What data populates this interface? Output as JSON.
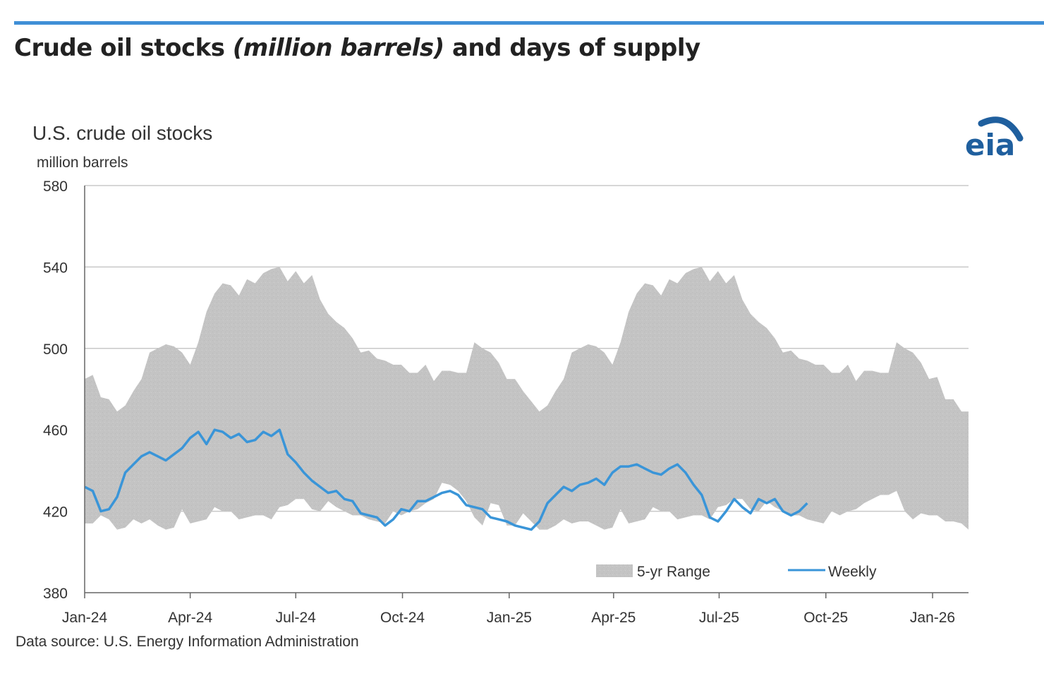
{
  "header": {
    "title_part1": "Crude oil stocks ",
    "title_part2": "(million barrels)",
    "title_part3": " and days of supply"
  },
  "colors": {
    "accent_rule": "#3f8fd6",
    "range_fill": "#c4c4c4",
    "weekly_line": "#3a95d8",
    "grid": "#c8c8c8",
    "logo": "#1f5f9e"
  },
  "logo": {
    "text": "eia"
  },
  "chart_data": {
    "type": "area",
    "title": "U.S. crude oil stocks",
    "ylabel": "million barrels",
    "ylim": [
      380,
      580
    ],
    "yticks": [
      380,
      420,
      460,
      500,
      540,
      580
    ],
    "xlim": [
      "2024-01-01",
      "2026-02-01"
    ],
    "xticks": [
      "Jan-24",
      "Apr-24",
      "Jul-24",
      "Oct-24",
      "Jan-25",
      "Apr-25",
      "Jul-25",
      "Oct-25",
      "Jan-26"
    ],
    "grid": true,
    "legend": "bottom-right",
    "legend_entries": [
      "5-yr Range",
      "Weekly"
    ],
    "source": "Data source: U.S. Energy Information Administration",
    "series": [
      {
        "name": "5-yr Range",
        "kind": "band",
        "x": [
          "2024-01-01",
          "2024-01-08",
          "2024-01-15",
          "2024-01-22",
          "2024-01-29",
          "2024-02-05",
          "2024-02-12",
          "2024-02-19",
          "2024-02-26",
          "2024-03-04",
          "2024-03-11",
          "2024-03-18",
          "2024-03-25",
          "2024-04-01",
          "2024-04-08",
          "2024-04-15",
          "2024-04-22",
          "2024-04-29",
          "2024-05-06",
          "2024-05-13",
          "2024-05-20",
          "2024-05-27",
          "2024-06-03",
          "2024-06-10",
          "2024-06-17",
          "2024-06-24",
          "2024-07-01",
          "2024-07-08",
          "2024-07-15",
          "2024-07-22",
          "2024-07-29",
          "2024-08-05",
          "2024-08-12",
          "2024-08-19",
          "2024-08-26",
          "2024-09-02",
          "2024-09-09",
          "2024-09-16",
          "2024-09-23",
          "2024-09-30",
          "2024-10-07",
          "2024-10-14",
          "2024-10-21",
          "2024-10-28",
          "2024-11-04",
          "2024-11-11",
          "2024-11-18",
          "2024-11-25",
          "2024-12-02",
          "2024-12-09",
          "2024-12-16",
          "2024-12-23",
          "2024-12-30",
          "2025-01-06",
          "2025-01-13",
          "2025-01-20",
          "2025-01-27",
          "2025-02-03",
          "2025-02-10",
          "2025-02-17",
          "2025-02-24",
          "2025-03-03",
          "2025-03-10",
          "2025-03-17",
          "2025-03-24",
          "2025-03-31",
          "2025-04-07",
          "2025-04-14",
          "2025-04-21",
          "2025-04-28",
          "2025-05-05",
          "2025-05-12",
          "2025-05-19",
          "2025-05-26",
          "2025-06-02",
          "2025-06-09",
          "2025-06-16",
          "2025-06-23",
          "2025-06-30",
          "2025-07-07",
          "2025-07-14",
          "2025-07-21",
          "2025-07-28",
          "2025-08-04",
          "2025-08-11",
          "2025-08-18",
          "2025-08-25",
          "2025-09-01",
          "2025-09-08",
          "2025-09-15",
          "2025-09-22",
          "2025-09-29",
          "2025-10-06",
          "2025-10-13",
          "2025-10-20",
          "2025-10-27",
          "2025-11-03",
          "2025-11-10",
          "2025-11-17",
          "2025-11-24",
          "2025-12-01",
          "2025-12-08",
          "2025-12-15",
          "2025-12-22",
          "2025-12-29",
          "2026-01-05",
          "2026-01-12",
          "2026-01-19",
          "2026-01-26",
          "2026-02-01"
        ],
        "upper": [
          485,
          487,
          476,
          475,
          469,
          472,
          479,
          485,
          498,
          500,
          502,
          501,
          498,
          492,
          503,
          518,
          527,
          532,
          531,
          526,
          534,
          532,
          537,
          539,
          540,
          533,
          538,
          532,
          536,
          524,
          517,
          513,
          510,
          505,
          498,
          499,
          495,
          494,
          492,
          492,
          488,
          488,
          492,
          484,
          489,
          489,
          488,
          488,
          503,
          500,
          498,
          493,
          485,
          485,
          479,
          474,
          469,
          472,
          479,
          485,
          498,
          500,
          502,
          501,
          498,
          492,
          503,
          518,
          527,
          532,
          531,
          526,
          534,
          532,
          537,
          539,
          540,
          533,
          538,
          532,
          536,
          524,
          517,
          513,
          510,
          505,
          498,
          499,
          495,
          494,
          492,
          492,
          488,
          488,
          492,
          484,
          489,
          489,
          488,
          488,
          503,
          500,
          498,
          493,
          485,
          486,
          475,
          475,
          469,
          469
        ],
        "lower": [
          414,
          414,
          418,
          416,
          411,
          412,
          416,
          414,
          416,
          413,
          411,
          412,
          421,
          414,
          415,
          416,
          422,
          420,
          420,
          416,
          417,
          418,
          418,
          416,
          422,
          423,
          426,
          426,
          421,
          420,
          425,
          422,
          420,
          418,
          418,
          416,
          415,
          414,
          420,
          418,
          420,
          421,
          424,
          426,
          434,
          433,
          430,
          425,
          417,
          413,
          424,
          423,
          413,
          413,
          419,
          415,
          411,
          411,
          413,
          416,
          414,
          415,
          415,
          413,
          411,
          412,
          421,
          414,
          415,
          416,
          422,
          420,
          420,
          416,
          417,
          418,
          418,
          416,
          422,
          423,
          426,
          426,
          421,
          420,
          425,
          422,
          420,
          418,
          418,
          416,
          415,
          414,
          420,
          418,
          420,
          421,
          424,
          426,
          428,
          428,
          430,
          420,
          416,
          419,
          418,
          418,
          415,
          415,
          414,
          411
        ]
      },
      {
        "name": "Weekly",
        "kind": "line",
        "x": [
          "2024-01-01",
          "2024-01-08",
          "2024-01-15",
          "2024-01-22",
          "2024-01-29",
          "2024-02-05",
          "2024-02-12",
          "2024-02-19",
          "2024-02-26",
          "2024-03-04",
          "2024-03-11",
          "2024-03-18",
          "2024-03-25",
          "2024-04-01",
          "2024-04-08",
          "2024-04-15",
          "2024-04-22",
          "2024-04-29",
          "2024-05-06",
          "2024-05-13",
          "2024-05-20",
          "2024-05-27",
          "2024-06-03",
          "2024-06-10",
          "2024-06-17",
          "2024-06-24",
          "2024-07-01",
          "2024-07-08",
          "2024-07-15",
          "2024-07-22",
          "2024-07-29",
          "2024-08-05",
          "2024-08-12",
          "2024-08-19",
          "2024-08-26",
          "2024-09-02",
          "2024-09-09",
          "2024-09-16",
          "2024-09-23",
          "2024-09-30",
          "2024-10-07",
          "2024-10-14",
          "2024-10-21",
          "2024-10-28",
          "2024-11-04",
          "2024-11-11",
          "2024-11-18",
          "2024-11-25",
          "2024-12-02",
          "2024-12-09",
          "2024-12-16",
          "2024-12-23",
          "2024-12-30",
          "2025-01-06",
          "2025-01-13",
          "2025-01-20",
          "2025-01-27",
          "2025-02-03",
          "2025-02-10",
          "2025-02-17",
          "2025-02-24",
          "2025-03-03",
          "2025-03-10",
          "2025-03-17",
          "2025-03-24",
          "2025-03-31",
          "2025-04-07",
          "2025-04-14",
          "2025-04-21",
          "2025-04-28",
          "2025-05-05",
          "2025-05-12",
          "2025-05-19",
          "2025-05-26",
          "2025-06-02",
          "2025-06-09",
          "2025-06-16",
          "2025-06-23",
          "2025-06-30",
          "2025-07-07",
          "2025-07-14",
          "2025-07-21",
          "2025-07-28",
          "2025-08-04",
          "2025-08-11",
          "2025-08-18",
          "2025-08-25",
          "2025-09-01",
          "2025-09-08",
          "2025-09-15"
        ],
        "values": [
          432,
          430,
          420,
          421,
          427,
          439,
          443,
          447,
          449,
          447,
          445,
          448,
          451,
          456,
          459,
          453,
          460,
          459,
          456,
          458,
          454,
          455,
          459,
          457,
          460,
          448,
          444,
          439,
          435,
          432,
          429,
          430,
          426,
          425,
          419,
          418,
          417,
          413,
          416,
          421,
          420,
          425,
          425,
          427,
          429,
          430,
          428,
          423,
          422,
          421,
          417,
          416,
          415,
          413,
          412,
          411,
          415,
          424,
          428,
          432,
          430,
          433,
          434,
          436,
          433,
          439,
          442,
          442,
          443,
          441,
          439,
          438,
          441,
          443,
          439,
          433,
          428,
          417,
          415,
          420,
          426,
          422,
          419,
          426,
          424,
          426,
          420,
          418,
          420,
          424
        ]
      }
    ]
  }
}
